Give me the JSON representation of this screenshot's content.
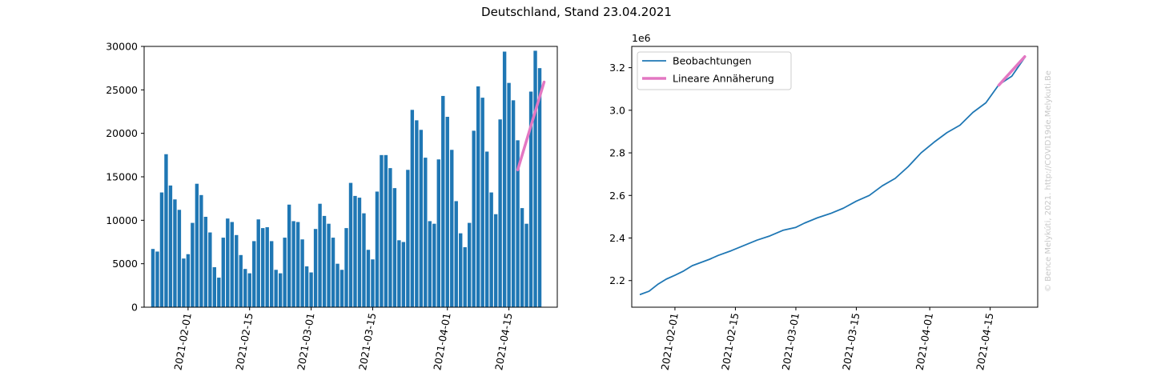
{
  "figure": {
    "title": "Deutschland, Stand 23.04.2021",
    "watermark": "© Bence Melykúti, 2021.  http://COVID19de.Melykuti.Be"
  },
  "chart_data": [
    {
      "type": "bar",
      "title": "",
      "xlabel": "",
      "ylabel": "",
      "x_start": "2021-01-24",
      "x_range": [
        "2021-01-22",
        "2021-04-26"
      ],
      "ylim": [
        0,
        30000
      ],
      "yticks": [
        0,
        5000,
        10000,
        15000,
        20000,
        25000,
        30000
      ],
      "xtick_labels": [
        "2021-02-01",
        "2021-02-15",
        "2021-03-01",
        "2021-03-15",
        "2021-04-01",
        "2021-04-15"
      ],
      "bar_color": "#1f77b4",
      "values": [
        6700,
        6400,
        13200,
        17600,
        14000,
        12400,
        11200,
        5600,
        6100,
        9700,
        14200,
        12900,
        10400,
        8600,
        4600,
        3400,
        8000,
        10200,
        9800,
        8300,
        6000,
        4400,
        3900,
        7600,
        10100,
        9100,
        9200,
        7600,
        4300,
        3900,
        8000,
        11800,
        9900,
        9800,
        7800,
        4700,
        4000,
        9000,
        11900,
        10500,
        9600,
        8000,
        5000,
        4300,
        9100,
        14300,
        12800,
        12600,
        10800,
        6600,
        5500,
        13300,
        17500,
        17500,
        16000,
        13700,
        7700,
        7500,
        15800,
        22700,
        21500,
        20400,
        17200,
        9900,
        9600,
        17000,
        24300,
        21900,
        18100,
        12200,
        8500,
        6900,
        9700,
        20300,
        25400,
        24100,
        17900,
        13200,
        10700,
        21600,
        29400,
        25800,
        23800,
        19200,
        11400,
        9600,
        24800,
        29500,
        27500
      ],
      "fit": {
        "name": "",
        "color": "#e377c2",
        "x": [
          "2021-04-17",
          "2021-04-23"
        ],
        "y": [
          15800,
          25900
        ]
      }
    },
    {
      "type": "line",
      "title": "",
      "xlabel": "",
      "ylabel": "",
      "x_range": [
        "2021-01-22",
        "2021-04-26"
      ],
      "ylim": [
        2.075,
        3.3
      ],
      "y_multiplier": "1e6",
      "yticks": [
        2.2,
        2.4,
        2.6,
        2.8,
        3.0,
        3.2
      ],
      "ytick_labels": [
        "2.2",
        "2.4",
        "2.6",
        "2.8",
        "3.0",
        "3.2"
      ],
      "xtick_labels": [
        "2021-02-01",
        "2021-02-15",
        "2021-03-01",
        "2021-03-15",
        "2021-04-01",
        "2021-04-15"
      ],
      "legend": {
        "placement": "top-left",
        "items": [
          "Beobachtungen",
          "Lineare Annäherung"
        ]
      },
      "series": [
        {
          "name": "Beobachtungen",
          "color": "#1f77b4",
          "x": [
            "2021-01-24",
            "2021-01-26",
            "2021-01-28",
            "2021-01-30",
            "2021-02-01",
            "2021-02-03",
            "2021-02-05",
            "2021-02-07",
            "2021-02-09",
            "2021-02-11",
            "2021-02-14",
            "2021-02-17",
            "2021-02-20",
            "2021-02-23",
            "2021-02-26",
            "2021-03-01",
            "2021-03-03",
            "2021-03-06",
            "2021-03-09",
            "2021-03-12",
            "2021-03-15",
            "2021-03-18",
            "2021-03-21",
            "2021-03-24",
            "2021-03-27",
            "2021-03-30",
            "2021-04-02",
            "2021-04-05",
            "2021-04-08",
            "2021-04-11",
            "2021-04-14",
            "2021-04-17",
            "2021-04-20",
            "2021-04-23"
          ],
          "y": [
            2.135,
            2.15,
            2.182,
            2.207,
            2.225,
            2.245,
            2.27,
            2.285,
            2.3,
            2.318,
            2.34,
            2.365,
            2.39,
            2.41,
            2.436,
            2.45,
            2.47,
            2.495,
            2.515,
            2.54,
            2.573,
            2.6,
            2.645,
            2.68,
            2.735,
            2.8,
            2.85,
            2.895,
            2.93,
            2.99,
            3.035,
            3.12,
            3.16,
            3.248
          ]
        },
        {
          "name": "Lineare Annäherung",
          "color": "#e377c2",
          "x": [
            "2021-04-17",
            "2021-04-23"
          ],
          "y": [
            3.118,
            3.252
          ]
        }
      ]
    }
  ]
}
